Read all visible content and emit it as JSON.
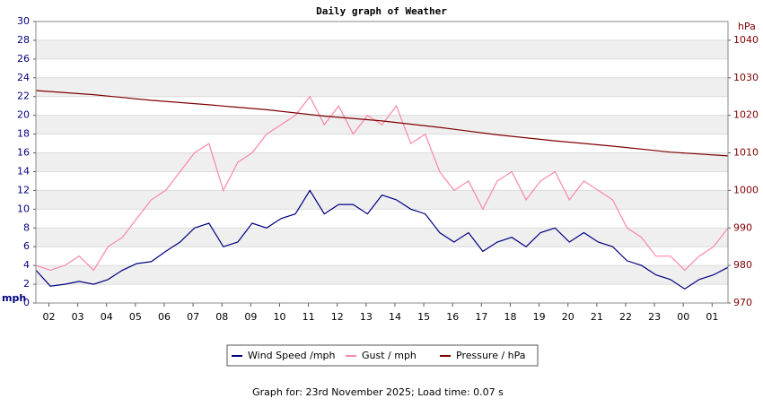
{
  "chart_data": {
    "type": "line",
    "title": "Daily graph of Weather",
    "y_label": "mph",
    "y2_label": "hPa",
    "footer": "Graph for: 23rd November 2025; Load time: 0.07 s",
    "x": [
      0,
      0.5,
      1,
      1.5,
      2,
      2.5,
      3,
      3.5,
      4,
      4.5,
      5,
      5.5,
      6,
      6.5,
      7,
      7.5,
      8,
      8.5,
      9,
      9.5,
      10,
      10.5,
      11,
      11.5,
      12,
      12.5,
      13,
      13.5,
      14,
      14.5,
      15,
      15.5,
      16,
      16.5,
      17,
      17.5,
      18,
      18.5,
      19,
      19.5,
      20,
      20.5,
      21,
      21.5,
      22,
      22.5,
      23,
      23.5,
      24
    ],
    "xlim": [
      0,
      24
    ],
    "xticks": [
      {
        "value": 0.45,
        "label": "02"
      },
      {
        "value": 1.45,
        "label": "03"
      },
      {
        "value": 2.45,
        "label": "04"
      },
      {
        "value": 3.45,
        "label": "05"
      },
      {
        "value": 4.45,
        "label": "06"
      },
      {
        "value": 5.45,
        "label": "07"
      },
      {
        "value": 6.45,
        "label": "08"
      },
      {
        "value": 7.45,
        "label": "09"
      },
      {
        "value": 8.45,
        "label": "10"
      },
      {
        "value": 9.45,
        "label": "11"
      },
      {
        "value": 10.45,
        "label": "12"
      },
      {
        "value": 11.45,
        "label": "13"
      },
      {
        "value": 12.45,
        "label": "14"
      },
      {
        "value": 13.45,
        "label": "15"
      },
      {
        "value": 14.45,
        "label": "16"
      },
      {
        "value": 15.45,
        "label": "17"
      },
      {
        "value": 16.45,
        "label": "18"
      },
      {
        "value": 17.45,
        "label": "19"
      },
      {
        "value": 18.45,
        "label": "20"
      },
      {
        "value": 19.45,
        "label": "21"
      },
      {
        "value": 20.45,
        "label": "22"
      },
      {
        "value": 21.45,
        "label": "23"
      },
      {
        "value": 22.45,
        "label": "00"
      },
      {
        "value": 23.45,
        "label": "01"
      }
    ],
    "ylim": [
      0,
      30
    ],
    "yticks": [
      0,
      2,
      4,
      6,
      8,
      10,
      12,
      14,
      16,
      18,
      20,
      22,
      24,
      26,
      28,
      30
    ],
    "y2lim": [
      970,
      1045
    ],
    "y2ticks": [
      970,
      980,
      990,
      1000,
      1010,
      1020,
      1030,
      1040
    ],
    "grid": true,
    "series": [
      {
        "name": "Gust / mph",
        "color": "#f987a8",
        "values": [
          4,
          3.5,
          4,
          5,
          3.5,
          6,
          7,
          9,
          11,
          12,
          14,
          16,
          17,
          12,
          15,
          16,
          18,
          19,
          20,
          22,
          19,
          21,
          18,
          20,
          19,
          21,
          17,
          18,
          14,
          12,
          13,
          10,
          13,
          14,
          11,
          13,
          14,
          11,
          13,
          12,
          11,
          8,
          7,
          5,
          5,
          3.5,
          5,
          6,
          8
        ]
      },
      {
        "name": "Wind Speed /mph",
        "color": "#000080",
        "values": [
          3.5,
          1.8,
          2,
          2.3,
          2,
          2.5,
          3.5,
          4.2,
          4.4,
          5.5,
          6.5,
          8,
          8.5,
          6,
          6.5,
          8.5,
          8,
          9,
          9.5,
          12,
          9.5,
          10.5,
          10.5,
          9.5,
          11.5,
          11,
          10,
          9.5,
          7.5,
          6.5,
          7.5,
          5.5,
          6.5,
          7,
          6,
          7.5,
          8,
          6.5,
          7.5,
          6.5,
          6,
          4.5,
          4,
          3,
          2.5,
          1.5,
          2.5,
          3,
          3.8
        ]
      },
      {
        "name": "Pressure / hPa",
        "color": "#800000",
        "axis": "y2",
        "x": [
          0,
          2,
          4,
          6,
          8,
          10,
          12,
          14,
          16,
          18,
          20,
          22,
          24
        ],
        "values": [
          1026.6,
          1025.5,
          1024,
          1022.8,
          1021.5,
          1019.8,
          1018.5,
          1016.8,
          1014.8,
          1013.2,
          1011.8,
          1010.2,
          1009.2
        ]
      }
    ],
    "legend_order": [
      1,
      0,
      2
    ]
  }
}
